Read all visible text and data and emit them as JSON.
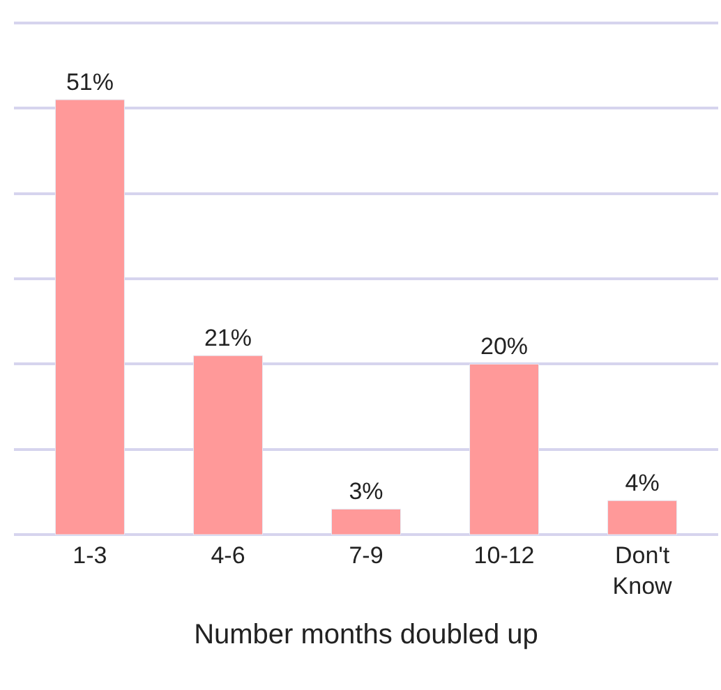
{
  "chart_data": {
    "type": "bar",
    "xlabel": "Number months doubled up",
    "categories": [
      "1-3",
      "4-6",
      "7-9",
      "10-12",
      "Don't Know"
    ],
    "values": [
      51,
      21,
      3,
      20,
      4
    ],
    "value_labels": [
      "51%",
      "21%",
      "3%",
      "20%",
      "4%"
    ],
    "color": "#ff9999",
    "yticks": [
      {
        "value": 0,
        "label": null
      },
      {
        "value": 10,
        "label": null
      },
      {
        "value": 20,
        "label": null
      },
      {
        "value": 30,
        "label": null
      },
      {
        "value": 40,
        "label": null
      },
      {
        "value": 50,
        "label": null
      },
      {
        "value": 60,
        "label": null
      }
    ],
    "grid": "y",
    "tick_labels": "x"
  }
}
